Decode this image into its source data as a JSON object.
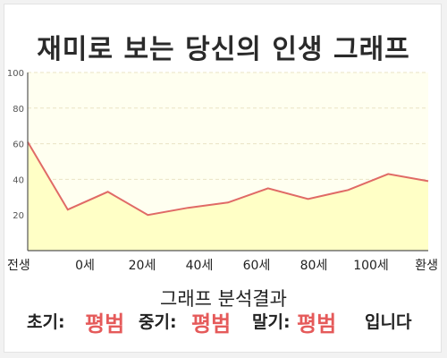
{
  "title": "재미로 보는 당신의 인생 그래프",
  "chart_data": {
    "type": "area",
    "title": "재미로 보는 당신의 인생 그래프",
    "x_labels": [
      "전생",
      "0세",
      "20세",
      "40세",
      "60세",
      "80세",
      "100세",
      "환생"
    ],
    "ylim": [
      0,
      100
    ],
    "yticks": [
      20,
      40,
      60,
      80,
      100
    ],
    "grid": true,
    "series": [
      {
        "values": [
          61,
          23,
          33,
          20,
          24,
          27,
          35,
          29,
          34,
          43,
          39
        ]
      }
    ],
    "colors": {
      "line": "#e06a66",
      "fill": "#ffffc6",
      "plot_bg": "#fffff0",
      "grid": "#e9e3c4"
    }
  },
  "result": {
    "heading": "그래프 분석결과",
    "early_label": "초기:",
    "early_value": "평범",
    "middle_label": "중기:",
    "middle_value": "평범",
    "late_label": "말기:",
    "late_value": "평범",
    "suffix": "입니다"
  }
}
